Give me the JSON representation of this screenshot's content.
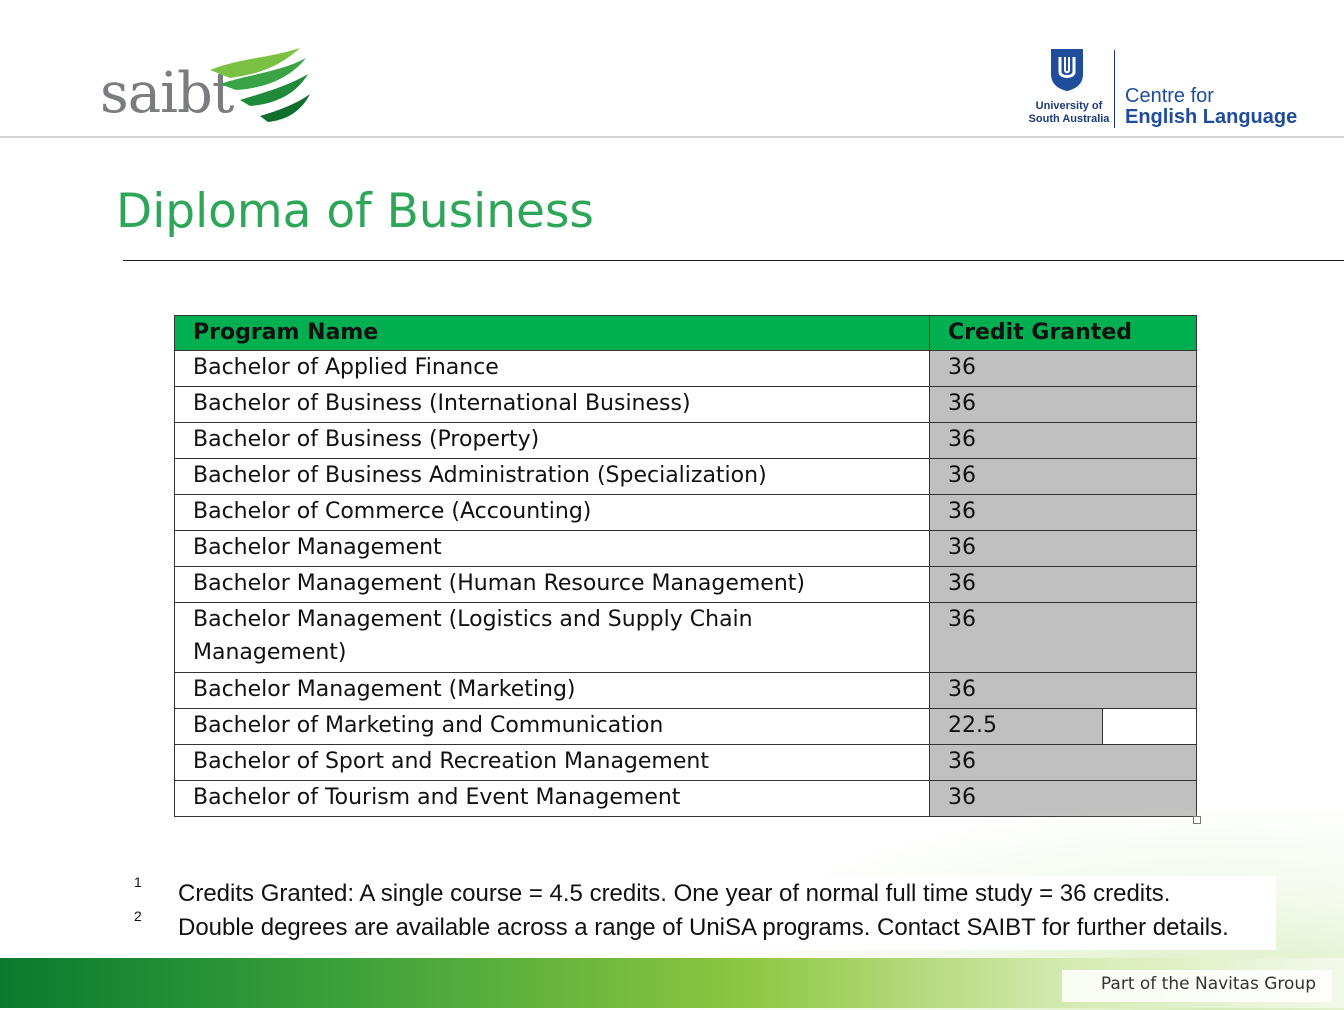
{
  "header": {
    "logo_left_text": "saibt",
    "logo_right": {
      "university_line1": "University of",
      "university_line2": "South Australia",
      "centre_line1": "Centre for",
      "centre_line2": "English Language"
    }
  },
  "page": {
    "title": "Diploma of Business"
  },
  "table": {
    "headers": [
      "Program Name",
      "Credit Granted"
    ],
    "rows": [
      {
        "name": "Bachelor of Applied Finance",
        "credit": "36"
      },
      {
        "name": "Bachelor of Business (International Business)",
        "credit": "36"
      },
      {
        "name": "Bachelor of Business (Property)",
        "credit": "36"
      },
      {
        "name": "Bachelor of Business Administration (Specialization)",
        "credit": "36"
      },
      {
        "name": "Bachelor of Commerce (Accounting)",
        "credit": "36"
      },
      {
        "name": "Bachelor Management",
        "credit": "36"
      },
      {
        "name": "Bachelor Management (Human Resource Management)",
        "credit": "36"
      },
      {
        "name": "Bachelor Management (Logistics and Supply Chain Management)",
        "credit": "36"
      },
      {
        "name": "Bachelor Management (Marketing)",
        "credit": "36"
      },
      {
        "name": "Bachelor of Marketing and Communication",
        "credit": "22.5"
      },
      {
        "name": "Bachelor of Sport and Recreation Management",
        "credit": "36"
      },
      {
        "name": "Bachelor of Tourism and Event Management",
        "credit": "36"
      }
    ]
  },
  "footnotes": [
    {
      "marker": "1",
      "text": "Credits Granted: A single course = 4.5 credits. One year of normal full time study = 36 credits."
    },
    {
      "marker": "2",
      "text": "Double degrees are available across a range of UniSA programs. Contact SAIBT for further details."
    }
  ],
  "footer": {
    "note": "Part of the Navitas Group"
  },
  "colors": {
    "title_green": "#2ea65a",
    "header_green": "#00b050",
    "credit_grey": "#c0c0c0",
    "unisa_blue": "#1f4c9b"
  }
}
